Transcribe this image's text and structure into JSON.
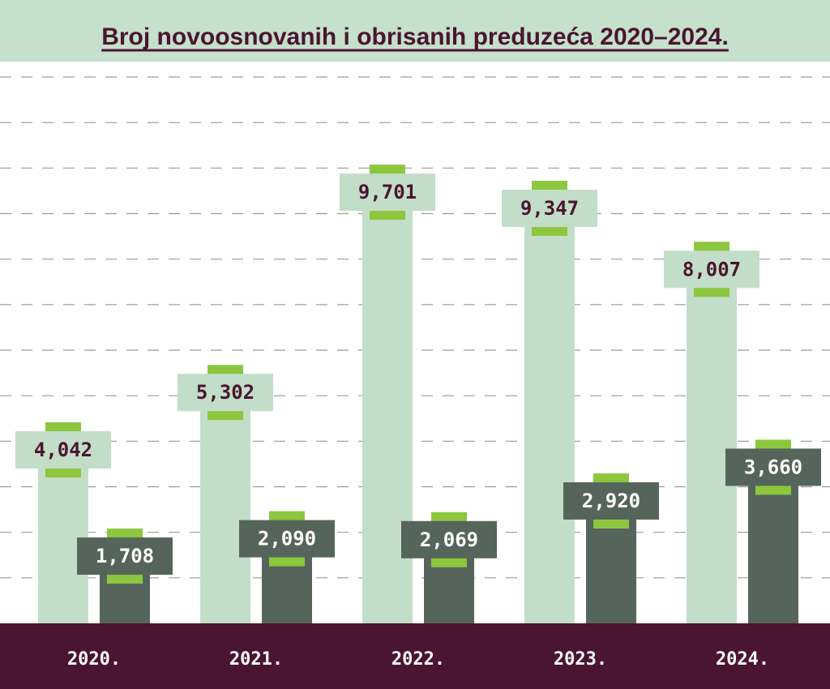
{
  "chart_data": {
    "type": "bar",
    "title": "Broj novoosnovanih i obrisanih preduzeća 2020–2024.",
    "categories": [
      "2020.",
      "2021.",
      "2022.",
      "2023.",
      "2024."
    ],
    "series": [
      {
        "values": [
          4042,
          5302,
          9701,
          9347,
          8007
        ]
      },
      {
        "values": [
          1708,
          2090,
          2069,
          2920,
          3660
        ]
      }
    ],
    "value_labels": [
      [
        "4,042",
        "5,302",
        "9,701",
        "9,347",
        "8,007"
      ],
      [
        "1,708",
        "2,090",
        "2,069",
        "2,920",
        "3,660"
      ]
    ],
    "xlabel": "",
    "ylabel": "",
    "ylim": [
      0,
      12000
    ],
    "grid": true,
    "colors": {
      "series_light": "#c2dec8",
      "series_dark": "#56655b",
      "accent": "#8dc63f",
      "title_band": "#c5e0cb",
      "title_text": "#4a1530",
      "footer": "#4a1530"
    }
  }
}
